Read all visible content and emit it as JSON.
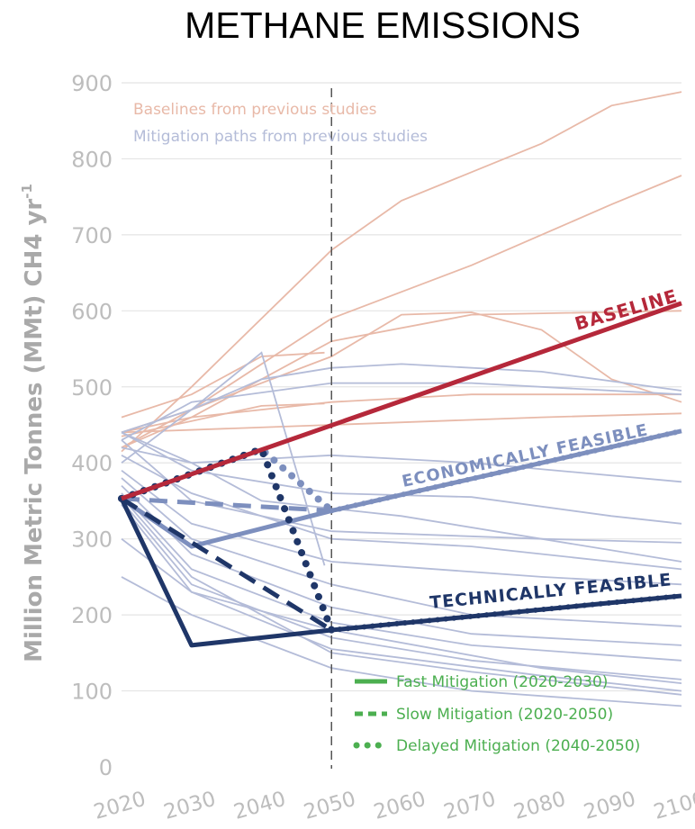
{
  "chart_data": {
    "type": "line",
    "title": "METHANE EMISSIONS",
    "ylabel": "Million Metric Tonnes (MMt) CH4 yr",
    "ylabel_sup": "-1",
    "xlim": [
      2020,
      2100
    ],
    "ylim": [
      0,
      900
    ],
    "x_ticks": [
      "2020",
      "2030",
      "2040",
      "2050",
      "2060",
      "2070",
      "2080",
      "2090",
      "2100"
    ],
    "y_ticks": [
      "0",
      "100",
      "200",
      "300",
      "400",
      "500",
      "600",
      "700",
      "800",
      "900"
    ],
    "grid": "horizontal",
    "reference_line_x": 2050,
    "notes": [
      {
        "text": "Baselines from previous studies",
        "color": "#e8b9a8"
      },
      {
        "text": "Mitigation paths from previous studies",
        "color": "#b4bcd8"
      }
    ],
    "curve_labels": {
      "baseline": "BASELINE",
      "economic": "ECONOMICALLY FEASIBLE",
      "technical": "TECHNICALLY FEASIBLE"
    },
    "legend": {
      "placement": "bottom-right",
      "color": "#4caf50",
      "items": [
        {
          "label": "Fast Mitigation (2020-2030)",
          "style": "solid"
        },
        {
          "label": "Slow Mitigation (2020-2050)",
          "style": "dashed"
        },
        {
          "label": "Delayed Mitigation (2040-2050)",
          "style": "dotted"
        }
      ]
    },
    "colors": {
      "baseline": "#b5283a",
      "economic": "#7d8fbe",
      "technical": "#1f3668",
      "prev_baseline": "#e8b9a8",
      "prev_mitigation": "#b4bcd8"
    },
    "previous_baselines": [
      [
        [
          2020,
          415
        ],
        [
          2030,
          500
        ],
        [
          2050,
          680
        ],
        [
          2060,
          745
        ],
        [
          2080,
          820
        ],
        [
          2090,
          870
        ],
        [
          2100,
          888
        ]
      ],
      [
        [
          2020,
          420
        ],
        [
          2030,
          470
        ],
        [
          2050,
          590
        ],
        [
          2070,
          660
        ],
        [
          2090,
          740
        ],
        [
          2100,
          778
        ]
      ],
      [
        [
          2020,
          440
        ],
        [
          2030,
          470
        ],
        [
          2050,
          540
        ],
        [
          2060,
          595
        ],
        [
          2070,
          598
        ],
        [
          2080,
          575
        ],
        [
          2090,
          510
        ],
        [
          2100,
          480
        ]
      ],
      [
        [
          2020,
          420
        ],
        [
          2030,
          460
        ],
        [
          2050,
          560
        ],
        [
          2070,
          595
        ],
        [
          2100,
          600
        ]
      ],
      [
        [
          2020,
          440
        ],
        [
          2030,
          460
        ],
        [
          2050,
          480
        ],
        [
          2070,
          490
        ],
        [
          2100,
          490
        ]
      ],
      [
        [
          2020,
          435
        ],
        [
          2040,
          475
        ],
        [
          2049,
          478
        ]
      ],
      [
        [
          2020,
          460
        ],
        [
          2030,
          490
        ],
        [
          2040,
          540
        ],
        [
          2049,
          545
        ]
      ],
      [
        [
          2020,
          440
        ],
        [
          2050,
          450
        ],
        [
          2080,
          460
        ],
        [
          2100,
          465
        ]
      ]
    ],
    "previous_mitigation": [
      [
        [
          2020,
          440
        ],
        [
          2030,
          470
        ],
        [
          2040,
          510
        ],
        [
          2050,
          525
        ],
        [
          2060,
          530
        ],
        [
          2080,
          520
        ],
        [
          2100,
          495
        ]
      ],
      [
        [
          2020,
          430
        ],
        [
          2030,
          480
        ],
        [
          2050,
          505
        ],
        [
          2070,
          505
        ],
        [
          2100,
          490
        ]
      ],
      [
        [
          2020,
          400
        ],
        [
          2030,
          470
        ],
        [
          2040,
          545
        ],
        [
          2049,
          265
        ]
      ],
      [
        [
          2020,
          420
        ],
        [
          2030,
          400
        ],
        [
          2050,
          410
        ],
        [
          2070,
          400
        ],
        [
          2100,
          375
        ]
      ],
      [
        [
          2020,
          440
        ],
        [
          2030,
          390
        ],
        [
          2050,
          360
        ],
        [
          2070,
          355
        ],
        [
          2090,
          330
        ],
        [
          2100,
          320
        ]
      ],
      [
        [
          2020,
          430
        ],
        [
          2030,
          350
        ],
        [
          2050,
          310
        ],
        [
          2080,
          300
        ],
        [
          2100,
          295
        ]
      ],
      [
        [
          2020,
          410
        ],
        [
          2030,
          360
        ],
        [
          2050,
          300
        ],
        [
          2070,
          290
        ],
        [
          2100,
          260
        ]
      ],
      [
        [
          2020,
          390
        ],
        [
          2030,
          320
        ],
        [
          2050,
          270
        ],
        [
          2080,
          250
        ],
        [
          2100,
          240
        ]
      ],
      [
        [
          2020,
          380
        ],
        [
          2030,
          300
        ],
        [
          2050,
          240
        ],
        [
          2070,
          200
        ],
        [
          2100,
          185
        ]
      ],
      [
        [
          2020,
          370
        ],
        [
          2030,
          280
        ],
        [
          2050,
          210
        ],
        [
          2070,
          175
        ],
        [
          2100,
          160
        ]
      ],
      [
        [
          2020,
          360
        ],
        [
          2030,
          260
        ],
        [
          2050,
          190
        ],
        [
          2070,
          160
        ],
        [
          2100,
          140
        ]
      ],
      [
        [
          2020,
          350
        ],
        [
          2030,
          240
        ],
        [
          2050,
          170
        ],
        [
          2070,
          140
        ],
        [
          2100,
          115
        ]
      ],
      [
        [
          2020,
          345
        ],
        [
          2030,
          230
        ],
        [
          2050,
          155
        ],
        [
          2080,
          120
        ],
        [
          2100,
          100
        ]
      ],
      [
        [
          2020,
          355
        ],
        [
          2030,
          250
        ],
        [
          2040,
          200
        ],
        [
          2050,
          150
        ],
        [
          2070,
          125
        ],
        [
          2100,
          95
        ]
      ],
      [
        [
          2020,
          300
        ],
        [
          2030,
          230
        ],
        [
          2050,
          180
        ],
        [
          2080,
          130
        ],
        [
          2100,
          110
        ]
      ],
      [
        [
          2020,
          250
        ],
        [
          2030,
          200
        ],
        [
          2050,
          130
        ],
        [
          2070,
          100
        ],
        [
          2100,
          80
        ]
      ],
      [
        [
          2020,
          440
        ],
        [
          2030,
          400
        ],
        [
          2040,
          350
        ],
        [
          2060,
          330
        ],
        [
          2080,
          300
        ],
        [
          2100,
          270
        ]
      ]
    ],
    "series": [
      {
        "id": "baseline",
        "style": "solid",
        "points": [
          [
            2020,
            353
          ],
          [
            2100,
            610
          ]
        ]
      },
      {
        "id": "economic-fast",
        "style": "solid",
        "points": [
          [
            2020,
            353
          ],
          [
            2030,
            290
          ],
          [
            2050,
            337
          ]
        ]
      },
      {
        "id": "economic-slow",
        "style": "dashed",
        "points": [
          [
            2020,
            353
          ],
          [
            2050,
            337
          ]
        ]
      },
      {
        "id": "economic-delayed",
        "style": "dotted",
        "points": [
          [
            2020,
            353
          ],
          [
            2040,
            418
          ],
          [
            2050,
            337
          ]
        ]
      },
      {
        "id": "economic-continuation",
        "style": "dotted-overlay",
        "points": [
          [
            2050,
            337
          ],
          [
            2100,
            442
          ]
        ]
      },
      {
        "id": "technical-fast",
        "style": "solid",
        "points": [
          [
            2020,
            353
          ],
          [
            2030,
            160
          ],
          [
            2050,
            180
          ]
        ]
      },
      {
        "id": "technical-slow",
        "style": "dashed",
        "points": [
          [
            2020,
            353
          ],
          [
            2050,
            180
          ]
        ]
      },
      {
        "id": "technical-delayed",
        "style": "dotted",
        "points": [
          [
            2020,
            353
          ],
          [
            2040,
            418
          ],
          [
            2050,
            180
          ]
        ]
      },
      {
        "id": "technical-continuation",
        "style": "dotted-overlay",
        "points": [
          [
            2050,
            180
          ],
          [
            2100,
            225
          ]
        ]
      }
    ]
  }
}
